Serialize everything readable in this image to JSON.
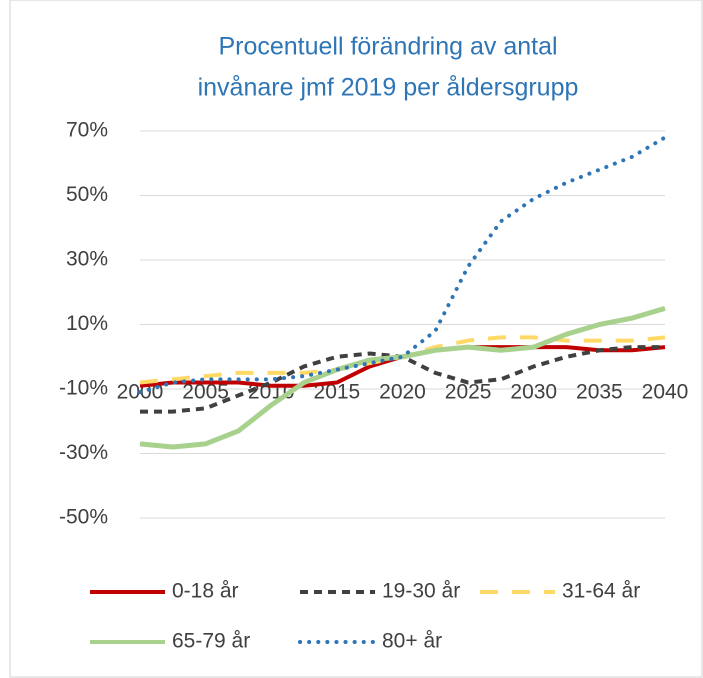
{
  "chart_data": {
    "type": "line",
    "title": "Procentuell förändring av antal",
    "subtitle": "invånare jmf 2019 per åldersgrupp",
    "x": [
      2000,
      2002.5,
      2005,
      2007.5,
      2010,
      2012.5,
      2015,
      2017.5,
      2020,
      2022.5,
      2025,
      2027.5,
      2030,
      2032.5,
      2035,
      2037.5,
      2040
    ],
    "xlim": [
      2000,
      2040
    ],
    "xticks": [
      2000,
      2005,
      2010,
      2015,
      2020,
      2025,
      2030,
      2035,
      2040
    ],
    "ylim": [
      -50,
      70
    ],
    "yticks": [
      {
        "value": -50,
        "label": "-50%"
      },
      {
        "value": -30,
        "label": "-30%"
      },
      {
        "value": -10,
        "label": "-10%"
      },
      {
        "value": 10,
        "label": "10%"
      },
      {
        "value": 30,
        "label": "30%"
      },
      {
        "value": 50,
        "label": "50%"
      },
      {
        "value": 70,
        "label": "70%"
      }
    ],
    "grid": true,
    "legend": "bottom",
    "series": [
      {
        "name": "0-18 år",
        "color": "#c00000",
        "line_style": "solid",
        "values": [
          -9,
          -8,
          -8,
          -8,
          -9,
          -9,
          -8,
          -3,
          0,
          2,
          3,
          3,
          3,
          3,
          2,
          2,
          3
        ]
      },
      {
        "name": "19-30 år",
        "color": "#404040",
        "line_style": "dashed",
        "values": [
          -17,
          -17,
          -16,
          -12,
          -8,
          -3,
          0,
          1,
          0,
          -5,
          -8,
          -7,
          -3,
          0,
          2,
          3,
          3
        ]
      },
      {
        "name": "31-64 år",
        "color": "#ffd966",
        "line_style": "long-dash",
        "values": [
          -8,
          -7,
          -6,
          -5,
          -5,
          -5,
          -4,
          -2,
          0,
          3,
          5,
          6,
          6,
          5,
          5,
          5,
          6
        ]
      },
      {
        "name": "65-79 år",
        "color": "#a9d18e",
        "line_style": "solid",
        "values": [
          -27,
          -28,
          -27,
          -23,
          -15,
          -8,
          -4,
          -1,
          0,
          2,
          3,
          2,
          3,
          7,
          10,
          12,
          15
        ]
      },
      {
        "name": "80+ år",
        "color": "#2e75b6",
        "line_style": "dotted",
        "values": [
          -11,
          -8,
          -7,
          -7,
          -7,
          -6,
          -4,
          -2,
          0,
          8,
          28,
          42,
          49,
          54,
          58,
          62,
          68
        ]
      }
    ]
  }
}
